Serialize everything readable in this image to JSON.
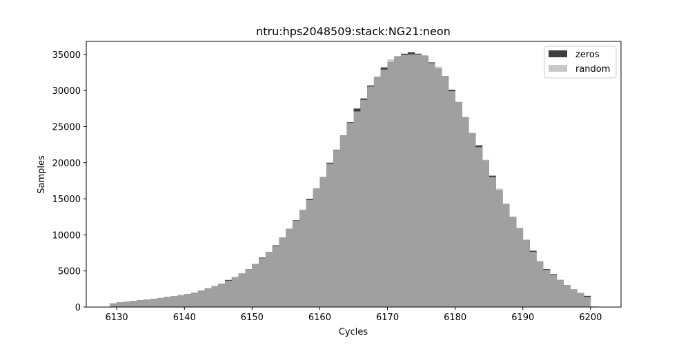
{
  "chart_data": {
    "type": "bar",
    "title": "ntru:hps2048509:stack:NG21:neon",
    "xlabel": "Cycles",
    "ylabel": "Samples",
    "xlim": [
      6125.5,
      6204.5
    ],
    "ylim": [
      0,
      36800
    ],
    "x_ticks": [
      6130,
      6140,
      6150,
      6160,
      6170,
      6180,
      6190,
      6200
    ],
    "y_ticks": [
      0,
      5000,
      10000,
      15000,
      20000,
      25000,
      30000,
      35000
    ],
    "legend_position": "top-right",
    "x": [
      6129,
      6130,
      6131,
      6132,
      6133,
      6134,
      6135,
      6136,
      6137,
      6138,
      6139,
      6140,
      6141,
      6142,
      6143,
      6144,
      6145,
      6146,
      6147,
      6148,
      6149,
      6150,
      6151,
      6152,
      6153,
      6154,
      6155,
      6156,
      6157,
      6158,
      6159,
      6160,
      6161,
      6162,
      6163,
      6164,
      6165,
      6166,
      6167,
      6168,
      6169,
      6170,
      6171,
      6172,
      6173,
      6174,
      6175,
      6176,
      6177,
      6178,
      6179,
      6180,
      6181,
      6182,
      6183,
      6184,
      6185,
      6186,
      6187,
      6188,
      6189,
      6190,
      6191,
      6192,
      6193,
      6194,
      6195,
      6196,
      6197,
      6198,
      6199,
      6200
    ],
    "series": [
      {
        "name": "zeros",
        "color": "#3f3f3f",
        "values": [
          500,
          650,
          750,
          850,
          950,
          1050,
          1150,
          1250,
          1400,
          1500,
          1650,
          1800,
          2000,
          2300,
          2600,
          2900,
          3250,
          3750,
          4150,
          4650,
          5250,
          5950,
          6850,
          7650,
          8550,
          9650,
          10800,
          12050,
          13400,
          15000,
          16400,
          18000,
          20000,
          21800,
          23800,
          25600,
          27500,
          28900,
          30700,
          31900,
          33200,
          33900,
          34700,
          35100,
          35300,
          35100,
          34800,
          33900,
          33000,
          32000,
          30100,
          28400,
          26300,
          24100,
          22400,
          20300,
          18200,
          16200,
          14300,
          12500,
          10900,
          9300,
          7800,
          6350,
          5250,
          4550,
          3750,
          3050,
          2450,
          1950,
          1550,
          50
        ]
      },
      {
        "name": "random",
        "color": "#c8c8c8",
        "values": [
          500,
          650,
          750,
          850,
          950,
          1050,
          1150,
          1250,
          1400,
          1500,
          1650,
          1800,
          2000,
          2300,
          2600,
          2900,
          3250,
          3650,
          4150,
          4650,
          5250,
          5950,
          6750,
          7650,
          8450,
          9650,
          10900,
          12000,
          13500,
          14850,
          16500,
          18050,
          19850,
          21750,
          23800,
          25500,
          27100,
          28700,
          30550,
          31900,
          32900,
          34300,
          34800,
          34950,
          35000,
          35000,
          34900,
          33800,
          33300,
          32000,
          29900,
          28400,
          26300,
          24100,
          22150,
          20400,
          18000,
          16400,
          14300,
          12500,
          11000,
          9300,
          7650,
          6350,
          5150,
          4450,
          3750,
          3050,
          2450,
          1950,
          1400,
          100
        ]
      }
    ]
  }
}
